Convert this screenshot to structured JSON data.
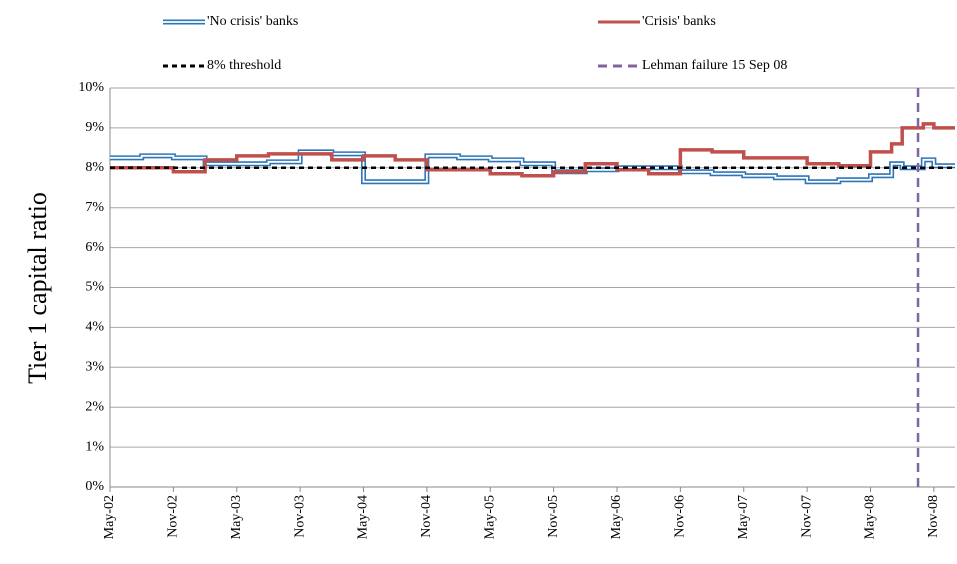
{
  "chart_data": {
    "type": "line",
    "y_label": "Tier 1 capital ratio",
    "xlim": [
      0,
      80
    ],
    "xticks": [
      {
        "value": 0,
        "label": "May-02"
      },
      {
        "value": 6,
        "label": "Nov-02"
      },
      {
        "value": 12,
        "label": "May-03"
      },
      {
        "value": 18,
        "label": "Nov-03"
      },
      {
        "value": 24,
        "label": "May-04"
      },
      {
        "value": 30,
        "label": "Nov-04"
      },
      {
        "value": 36,
        "label": "May-05"
      },
      {
        "value": 42,
        "label": "Nov-05"
      },
      {
        "value": 48,
        "label": "May-06"
      },
      {
        "value": 54,
        "label": "Nov-06"
      },
      {
        "value": 60,
        "label": "May-07"
      },
      {
        "value": 66,
        "label": "Nov-07"
      },
      {
        "value": 72,
        "label": "May-08"
      },
      {
        "value": 78,
        "label": "Nov-08"
      }
    ],
    "ylim": [
      0,
      10
    ],
    "yticks": [
      {
        "value": 0,
        "label": "0%"
      },
      {
        "value": 1,
        "label": "1%"
      },
      {
        "value": 2,
        "label": "2%"
      },
      {
        "value": 3,
        "label": "3%"
      },
      {
        "value": 4,
        "label": "4%"
      },
      {
        "value": 5,
        "label": "5%"
      },
      {
        "value": 6,
        "label": "6%"
      },
      {
        "value": 7,
        "label": "7%"
      },
      {
        "value": 8,
        "label": "8%"
      },
      {
        "value": 9,
        "label": "9%"
      },
      {
        "value": 10,
        "label": "10%"
      }
    ],
    "grid": true,
    "series": [
      {
        "name": "'No crisis' banks",
        "color": "#2e75b6",
        "style": "double",
        "step": true,
        "x": [
          0,
          3,
          6,
          9,
          12,
          15,
          18,
          21,
          24,
          27,
          30,
          33,
          36,
          39,
          42,
          45,
          48,
          51,
          54,
          57,
          60,
          63,
          66,
          69,
          72,
          74,
          75,
          76,
          77,
          78,
          80
        ],
        "values": [
          8.25,
          8.3,
          8.25,
          8.1,
          8.1,
          8.15,
          8.4,
          8.35,
          7.65,
          7.65,
          8.3,
          8.25,
          8.2,
          8.1,
          7.9,
          7.95,
          8.0,
          8.0,
          7.9,
          7.85,
          7.8,
          7.75,
          7.65,
          7.7,
          7.8,
          8.1,
          8.0,
          8.0,
          8.2,
          8.05,
          8.05
        ]
      },
      {
        "name": "'Crisis' banks",
        "color": "#c0504d",
        "style": "solid",
        "step": true,
        "x": [
          0,
          3,
          6,
          9,
          12,
          15,
          18,
          21,
          24,
          27,
          30,
          33,
          36,
          39,
          42,
          45,
          48,
          51,
          54,
          57,
          60,
          63,
          66,
          69,
          72,
          74,
          75,
          77,
          78,
          80
        ],
        "values": [
          8.0,
          8.0,
          7.9,
          8.2,
          8.3,
          8.35,
          8.35,
          8.2,
          8.3,
          8.2,
          7.95,
          7.95,
          7.85,
          7.8,
          7.9,
          8.1,
          7.95,
          7.85,
          8.45,
          8.4,
          8.25,
          8.25,
          8.1,
          8.05,
          8.4,
          8.6,
          9.0,
          9.1,
          9.0,
          9.0
        ]
      },
      {
        "name": "8% threshold",
        "color": "#000000",
        "style": "dashed",
        "step": false,
        "x": [
          0,
          80
        ],
        "values": [
          8,
          8
        ]
      },
      {
        "name": "Lehman failure 15 Sep 08",
        "color": "#8064a2",
        "style": "longdash",
        "step": false,
        "x": [
          76.5,
          76.5
        ],
        "values": [
          0,
          10
        ]
      }
    ]
  }
}
